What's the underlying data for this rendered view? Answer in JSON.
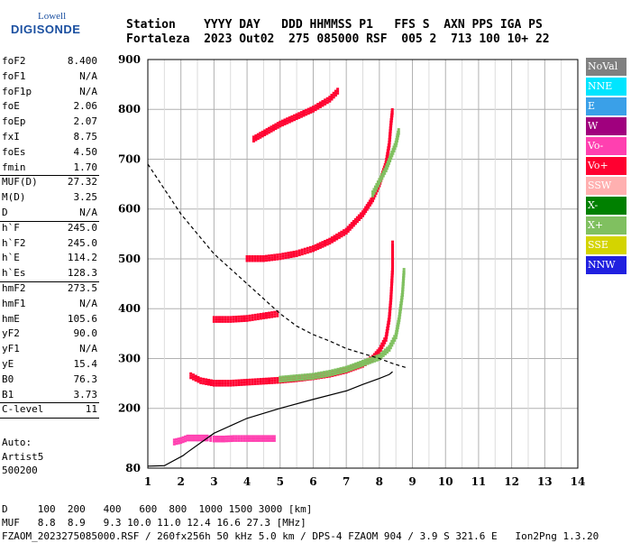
{
  "logo": {
    "line1": "Lowell",
    "line2": "DIGISONDE"
  },
  "header": {
    "line1": "Station    YYYY DAY   DDD HHMMSS P1   FFS S  AXN PPS IGA PS",
    "line2": "Fortaleza  2023 Out02  275 085000 RSF  005 2  713 100 10+ 22"
  },
  "params": [
    {
      "name": "foF2",
      "value": "8.400"
    },
    {
      "name": "foF1",
      "value": "N/A"
    },
    {
      "name": "foF1p",
      "value": "N/A"
    },
    {
      "name": "foE",
      "value": "2.06"
    },
    {
      "name": "foEp",
      "value": "2.07"
    },
    {
      "name": "fxI",
      "value": "8.75"
    },
    {
      "name": "foEs",
      "value": "4.50"
    },
    {
      "name": "fmin",
      "value": "1.70"
    },
    {
      "sep": true
    },
    {
      "name": "MUF(D)",
      "value": "27.32"
    },
    {
      "name": "M(D)",
      "value": "3.25"
    },
    {
      "name": "D",
      "value": "N/A"
    },
    {
      "sep": true
    },
    {
      "name": "h`F",
      "value": "245.0"
    },
    {
      "name": "h`F2",
      "value": "245.0"
    },
    {
      "name": "h`E",
      "value": "114.2"
    },
    {
      "name": "h`Es",
      "value": "128.3"
    },
    {
      "sep": true
    },
    {
      "name": "hmF2",
      "value": "273.5"
    },
    {
      "name": "hmF1",
      "value": "N/A"
    },
    {
      "name": "hmE",
      "value": "105.6"
    },
    {
      "name": "yF2",
      "value": "90.0"
    },
    {
      "name": "yF1",
      "value": "N/A"
    },
    {
      "name": "yE",
      "value": "15.4"
    },
    {
      "name": "B0",
      "value": "76.3"
    },
    {
      "name": "B1",
      "value": "3.73"
    },
    {
      "sep": true
    },
    {
      "name": "C-level",
      "value": "11"
    },
    {
      "sep": true
    }
  ],
  "auto": {
    "line1": "Auto:",
    "line2": "Artist5",
    "line3": "500200"
  },
  "legend": [
    {
      "label": "NoVal",
      "bg": "#808080",
      "fg": "#ffffff"
    },
    {
      "label": "NNE",
      "bg": "#00e5ff",
      "fg": "#ffffff"
    },
    {
      "label": "E",
      "bg": "#3aa0e8",
      "fg": "#ffffff"
    },
    {
      "label": "W",
      "bg": "#a0007e",
      "fg": "#ffffff"
    },
    {
      "label": "Vo-",
      "bg": "#ff40b0",
      "fg": "#ffffff"
    },
    {
      "label": "Vo+",
      "bg": "#ff0030",
      "fg": "#ffffff"
    },
    {
      "label": "SSW",
      "bg": "#ffb0b0",
      "fg": "#ffffff"
    },
    {
      "label": "X-",
      "bg": "#008000",
      "fg": "#ffffff"
    },
    {
      "label": "X+",
      "bg": "#80c060",
      "fg": "#ffffff"
    },
    {
      "label": "SSE",
      "bg": "#d4d400",
      "fg": "#ffffff"
    },
    {
      "label": "NNW",
      "bg": "#2020e0",
      "fg": "#ffffff"
    }
  ],
  "footer": {
    "line1": "D     100  200   400   600  800  1000 1500 3000 [km]",
    "line2": "MUF   8.8  8.9   9.3 10.0 11.0 12.4 16.6 27.3 [MHz]",
    "line3": "FZAOM_2023275085000.RSF / 260fx256h 50 kHz 5.0 km / DPS-4 FZAOM 904 / 3.9 S 321.6 E   Ion2Png 1.3.20"
  },
  "chart_data": {
    "type": "scatter",
    "xlim": [
      1,
      14
    ],
    "ylim": [
      80,
      900
    ],
    "xticks": [
      1,
      2,
      3,
      4,
      5,
      6,
      7,
      8,
      9,
      10,
      11,
      12,
      13,
      14
    ],
    "yticks": [
      80,
      200,
      300,
      400,
      500,
      600,
      700,
      800,
      900
    ],
    "grid": true,
    "legend_position": "right",
    "traces": [
      {
        "name": "Es layer",
        "color": "#ff40b0",
        "points": [
          [
            1.8,
            132
          ],
          [
            2.0,
            135
          ],
          [
            2.2,
            140
          ],
          [
            2.5,
            140
          ],
          [
            2.8,
            140
          ],
          [
            3.0,
            138
          ],
          [
            3.3,
            138
          ],
          [
            3.6,
            139
          ],
          [
            4.0,
            139
          ],
          [
            4.3,
            139
          ],
          [
            4.6,
            139
          ],
          [
            4.9,
            139
          ]
        ]
      },
      {
        "name": "F2 first hop O",
        "color": "#ff0030",
        "points": [
          [
            2.3,
            265
          ],
          [
            2.6,
            255
          ],
          [
            3.0,
            250
          ],
          [
            3.5,
            250
          ],
          [
            4.0,
            252
          ],
          [
            4.5,
            254
          ],
          [
            5.0,
            256
          ],
          [
            5.5,
            259
          ],
          [
            6.0,
            263
          ],
          [
            6.5,
            268
          ],
          [
            7.0,
            276
          ],
          [
            7.5,
            288
          ],
          [
            7.8,
            300
          ],
          [
            8.0,
            315
          ],
          [
            8.2,
            340
          ],
          [
            8.3,
            380
          ],
          [
            8.35,
            420
          ],
          [
            8.4,
            480
          ],
          [
            8.4,
            535
          ]
        ]
      },
      {
        "name": "F2 first hop X",
        "color": "#80c060",
        "points": [
          [
            5.0,
            258
          ],
          [
            6.0,
            264
          ],
          [
            6.5,
            270
          ],
          [
            7.0,
            278
          ],
          [
            7.5,
            290
          ],
          [
            8.0,
            302
          ],
          [
            8.3,
            320
          ],
          [
            8.5,
            345
          ],
          [
            8.6,
            380
          ],
          [
            8.7,
            430
          ],
          [
            8.75,
            480
          ]
        ]
      },
      {
        "name": "Secondary trace 380 km",
        "color": "#ff0030",
        "points": [
          [
            3.0,
            378
          ],
          [
            3.5,
            378
          ],
          [
            4.0,
            380
          ],
          [
            4.5,
            385
          ],
          [
            5.0,
            390
          ]
        ]
      },
      {
        "name": "F2 second hop",
        "color": "#ff0030",
        "points": [
          [
            4.0,
            500
          ],
          [
            4.5,
            500
          ],
          [
            5.0,
            504
          ],
          [
            5.5,
            510
          ],
          [
            6.0,
            520
          ],
          [
            6.5,
            535
          ],
          [
            7.0,
            555
          ],
          [
            7.5,
            590
          ],
          [
            7.8,
            620
          ],
          [
            8.0,
            650
          ],
          [
            8.2,
            690
          ],
          [
            8.3,
            730
          ],
          [
            8.35,
            770
          ],
          [
            8.4,
            800
          ]
        ]
      },
      {
        "name": "F2 second hop X",
        "color": "#80c060",
        "points": [
          [
            7.8,
            630
          ],
          [
            8.2,
            680
          ],
          [
            8.5,
            730
          ],
          [
            8.6,
            760
          ]
        ]
      },
      {
        "name": "Upper trace",
        "color": "#ff0030",
        "points": [
          [
            4.2,
            740
          ],
          [
            4.6,
            755
          ],
          [
            5.0,
            770
          ],
          [
            5.5,
            785
          ],
          [
            6.0,
            800
          ],
          [
            6.5,
            820
          ],
          [
            6.8,
            840
          ]
        ]
      }
    ],
    "profile": {
      "name": "Electron density profile",
      "color": "#000000",
      "points": [
        [
          1.0,
          84
        ],
        [
          1.5,
          85
        ],
        [
          2.06,
          105
        ],
        [
          2.2,
          112
        ],
        [
          3.0,
          150
        ],
        [
          4.0,
          180
        ],
        [
          5.0,
          200
        ],
        [
          6.0,
          218
        ],
        [
          7.0,
          235
        ],
        [
          7.5,
          248
        ],
        [
          8.0,
          260
        ],
        [
          8.3,
          268
        ],
        [
          8.4,
          273.5
        ]
      ]
    },
    "muf_curve": {
      "name": "MUF dashed curve",
      "color": "#000000",
      "points": [
        [
          1.0,
          690
        ],
        [
          1.5,
          640
        ],
        [
          2.0,
          590
        ],
        [
          2.5,
          550
        ],
        [
          3.0,
          510
        ],
        [
          3.5,
          480
        ],
        [
          4.0,
          450
        ],
        [
          4.5,
          420
        ],
        [
          5.0,
          390
        ],
        [
          5.5,
          365
        ],
        [
          6.0,
          348
        ],
        [
          6.5,
          335
        ],
        [
          7.0,
          320
        ],
        [
          7.5,
          310
        ],
        [
          8.0,
          300
        ],
        [
          8.2,
          295
        ],
        [
          8.4,
          290
        ],
        [
          8.8,
          282
        ]
      ]
    }
  }
}
